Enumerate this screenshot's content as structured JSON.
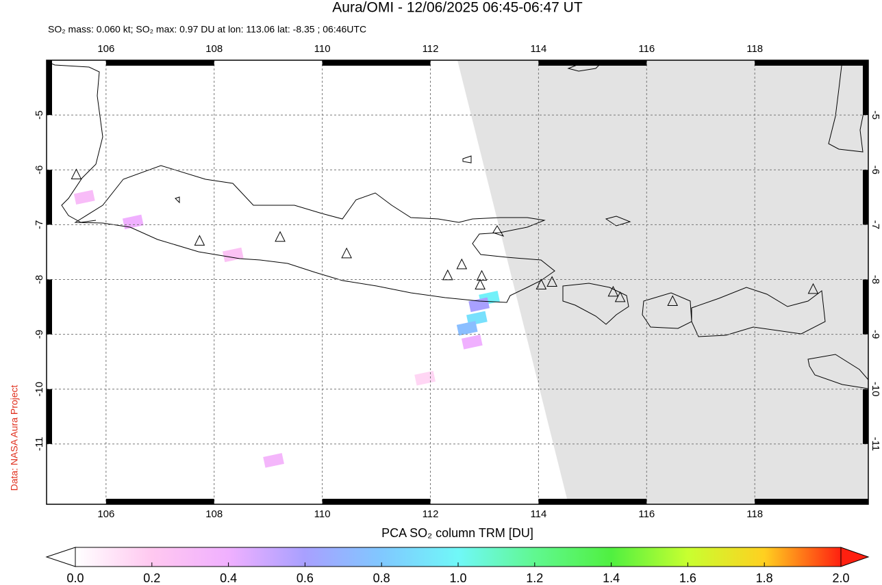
{
  "map": {
    "title": "Aura/OMI - 12/06/2025 06:45-06:47 UT",
    "subtitle": "SO₂ mass: 0.060 kt; SO₂ max: 0.97 DU at lon: 113.06 lat: -8.35 ; 06:46UTC",
    "credit": "Data: NASA Aura Project",
    "xlim": [
      104.9,
      120.1
    ],
    "ylim": [
      -12.1,
      -4.0
    ],
    "xticks": [
      106,
      108,
      110,
      112,
      114,
      116,
      118
    ],
    "yticks": [
      -5,
      -6,
      -7,
      -8,
      -9,
      -10,
      -11
    ],
    "grid": true,
    "volcanoes": {
      "lon": [
        105.45,
        107.73,
        109.22,
        110.45,
        112.32,
        112.58,
        112.95,
        112.92,
        114.05,
        114.25,
        115.38,
        115.51,
        116.48,
        119.08
      ],
      "lat": [
        -6.09,
        -7.3,
        -7.23,
        -7.53,
        -7.93,
        -7.73,
        -7.94,
        -8.1,
        -8.1,
        -8.05,
        -8.23,
        -8.33,
        -8.4,
        -8.18
      ]
    },
    "so2_pixels": {
      "lon": [
        113.09,
        112.86,
        112.68,
        112.9,
        112.77,
        106.5,
        108.35,
        105.6,
        109.1,
        111.9
      ],
      "lat": [
        -8.34,
        -8.71,
        -8.89,
        -8.46,
        -9.14,
        -6.95,
        -7.55,
        -6.5,
        -11.3,
        -9.8
      ],
      "values": [
        0.97,
        0.9,
        0.75,
        0.6,
        0.4,
        0.4,
        0.25,
        0.3,
        0.35,
        0.15
      ]
    },
    "colorbar": {
      "label": "PCA SO₂ column TRM [DU]",
      "clim": [
        0,
        2
      ],
      "colormap": [
        "#ffffff",
        "#ffc8f0",
        "#f0b0ff",
        "#a8a0ff",
        "#80c8ff",
        "#70f8f8",
        "#60f890",
        "#50f040",
        "#c8ff30",
        "#ffd020",
        "#ff2010"
      ],
      "ticks": [
        {
          "value": 0,
          "label": "0.0"
        },
        {
          "value": 0.2,
          "label": "0.2"
        },
        {
          "value": 0.4,
          "label": "0.4"
        },
        {
          "value": 0.6,
          "label": "0.6"
        },
        {
          "value": 0.8,
          "label": "0.8"
        },
        {
          "value": 1,
          "label": "1.0"
        },
        {
          "value": 1.2,
          "label": "1.2"
        },
        {
          "value": 1.4,
          "label": "1.4"
        },
        {
          "value": 1.6,
          "label": "1.6"
        },
        {
          "value": 1.8,
          "label": "1.8"
        },
        {
          "value": 2,
          "label": "2.0"
        }
      ]
    }
  }
}
